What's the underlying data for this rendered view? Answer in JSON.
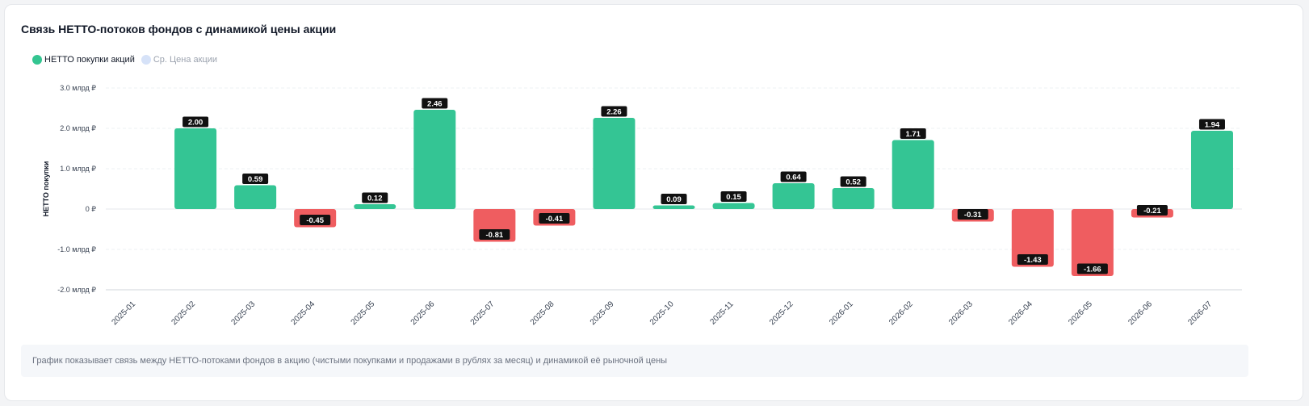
{
  "card": {
    "title": "Связь НЕТТО-потоков фондов с динамикой цены акции",
    "caption": "График показывает связь между НЕТТО-потоками фондов в акцию (чистыми покупками и продажами в рублях за месяц) и динамикой её рыночной цены"
  },
  "legend": [
    {
      "label": "НЕТТО покупки акций",
      "color": "#34c591",
      "active": true
    },
    {
      "label": "Ср. Цена акции",
      "color": "#d6e2f8",
      "active": false
    }
  ],
  "colors": {
    "positive": "#34c594",
    "negative": "#ef5d60",
    "label_bg": "#111111",
    "label_text": "#ffffff"
  },
  "chart_data": {
    "type": "bar",
    "ylabel": "НЕТТО покупки",
    "ylim": [
      -2.0,
      3.0
    ],
    "y_ticks": [
      {
        "value": 3.0,
        "label": "3.0 млрд ₽"
      },
      {
        "value": 2.0,
        "label": "2.0 млрд ₽"
      },
      {
        "value": 1.0,
        "label": "1.0 млрд ₽"
      },
      {
        "value": 0,
        "label": "0 ₽"
      },
      {
        "value": -1.0,
        "label": "-1.0 млрд ₽"
      },
      {
        "value": -2.0,
        "label": "-2.0 млрд ₽"
      }
    ],
    "categories": [
      "2025-01",
      "2025-02",
      "2025-03",
      "2025-04",
      "2025-05",
      "2025-06",
      "2025-07",
      "2025-08",
      "2025-09",
      "2025-10",
      "2025-11",
      "2025-12",
      "2026-01",
      "2026-02",
      "2026-03",
      "2026-04",
      "2026-05",
      "2026-06",
      "2026-07"
    ],
    "values": [
      null,
      2.0,
      0.59,
      -0.45,
      0.12,
      2.46,
      -0.81,
      -0.41,
      2.26,
      0.09,
      0.15,
      0.64,
      0.52,
      1.71,
      -0.31,
      -1.43,
      -1.66,
      -0.21,
      1.94
    ],
    "value_labels": [
      "",
      "2.00",
      "0.59",
      "-0.45",
      "0.12",
      "2.46",
      "-0.81",
      "-0.41",
      "2.26",
      "0.09",
      "0.15",
      "0.64",
      "0.52",
      "1.71",
      "-0.31",
      "-1.43",
      "-1.66",
      "-0.21",
      "1.94"
    ],
    "grid": true,
    "legend_position": "top-left"
  }
}
